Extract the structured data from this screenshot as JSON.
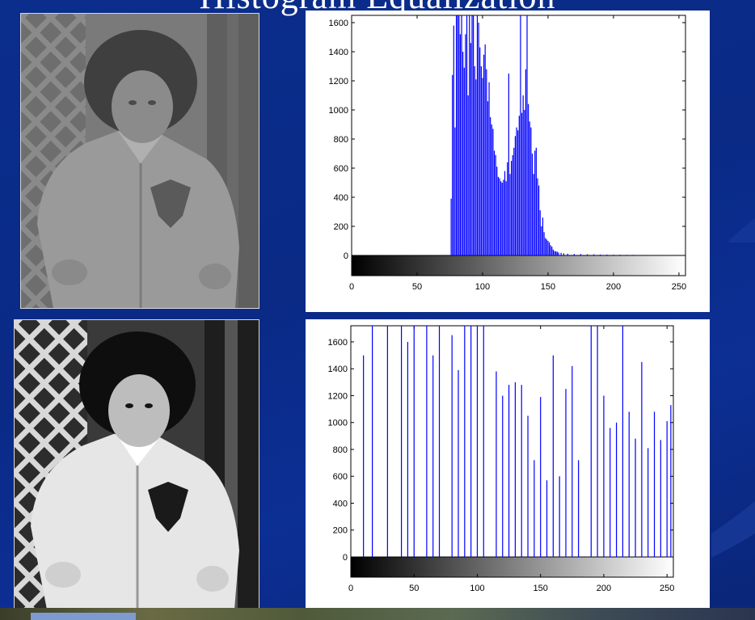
{
  "slide": {
    "title": "Histogram Equalization"
  },
  "photos": [
    {
      "name": "original-photo",
      "description_icon": "child-photo-low-contrast"
    },
    {
      "name": "equalized-photo",
      "description_icon": "child-photo-high-contrast"
    }
  ],
  "chart_data": [
    {
      "type": "bar",
      "xlim": [
        0,
        255
      ],
      "ylim": [
        -130,
        1650
      ],
      "x_ticks": [
        0,
        50,
        100,
        150,
        200,
        250
      ],
      "y_ticks": [
        0,
        200,
        400,
        600,
        800,
        1000,
        1200,
        1400,
        1600
      ],
      "grayscale_bar": true,
      "bar_color": "#0000ff",
      "series": [
        {
          "x": [
            76,
            77,
            78,
            79,
            80,
            81,
            82,
            83,
            84,
            85,
            86,
            87,
            88,
            89,
            90,
            91,
            92,
            93,
            94,
            95,
            96,
            97,
            98,
            99,
            100,
            101,
            102,
            103,
            104,
            105,
            106,
            107,
            108,
            109,
            110,
            111,
            112,
            113,
            114,
            115,
            116,
            117,
            118,
            119,
            120,
            121,
            122,
            123,
            124,
            125,
            126,
            127,
            128,
            129,
            130,
            131,
            132,
            133,
            134,
            135,
            136,
            137,
            138,
            139,
            140,
            141,
            142,
            143,
            144,
            145,
            146,
            147,
            148,
            149,
            150,
            151,
            152,
            153,
            154,
            155,
            156,
            157,
            158,
            160,
            162,
            165,
            170,
            175,
            180,
            185,
            190,
            195,
            200,
            205,
            210,
            215,
            220
          ],
          "values": [
            390,
            1240,
            1580,
            880,
            1650,
            1650,
            1650,
            1520,
            1650,
            1400,
            1290,
            1520,
            1650,
            1100,
            1650,
            1460,
            1650,
            1650,
            1300,
            1210,
            1650,
            1600,
            1430,
            1300,
            1220,
            1380,
            1450,
            1280,
            1060,
            1190,
            950,
            900,
            870,
            720,
            690,
            610,
            540,
            530,
            510,
            500,
            520,
            580,
            510,
            640,
            1250,
            560,
            650,
            690,
            740,
            820,
            880,
            860,
            960,
            1650,
            980,
            1100,
            1000,
            1280,
            1650,
            1040,
            920,
            880,
            700,
            560,
            720,
            740,
            530,
            480,
            310,
            200,
            260,
            160,
            120,
            110,
            100,
            90,
            70,
            60,
            40,
            30,
            28,
            25,
            20,
            18,
            15,
            12,
            10,
            10,
            8,
            8,
            6,
            6,
            5,
            5,
            4,
            4,
            3
          ]
        }
      ]
    },
    {
      "type": "bar",
      "xlim": [
        0,
        255
      ],
      "ylim": [
        -130,
        1720
      ],
      "x_ticks": [
        0,
        50,
        100,
        150,
        200,
        250
      ],
      "y_ticks": [
        0,
        200,
        400,
        600,
        800,
        1000,
        1200,
        1400,
        1600
      ],
      "grayscale_bar": true,
      "bar_color": "#0000ff",
      "series": [
        {
          "x": [
            10,
            17,
            29,
            40,
            45,
            50,
            60,
            65,
            70,
            80,
            85,
            90,
            95,
            100,
            105,
            115,
            120,
            125,
            130,
            135,
            140,
            145,
            150,
            155,
            160,
            165,
            170,
            175,
            180,
            190,
            195,
            200,
            205,
            210,
            215,
            220,
            225,
            230,
            235,
            240,
            245,
            250,
            253
          ],
          "values": [
            1500,
            1720,
            1720,
            1720,
            1600,
            1720,
            1720,
            1500,
            1720,
            1650,
            1390,
            1720,
            1720,
            1720,
            1720,
            1380,
            1200,
            1280,
            1300,
            1280,
            1050,
            720,
            1190,
            570,
            1500,
            600,
            1250,
            1420,
            720,
            1720,
            1720,
            1200,
            960,
            1000,
            1720,
            1080,
            880,
            1450,
            810,
            1080,
            870,
            1010,
            1130
          ]
        }
      ]
    }
  ]
}
